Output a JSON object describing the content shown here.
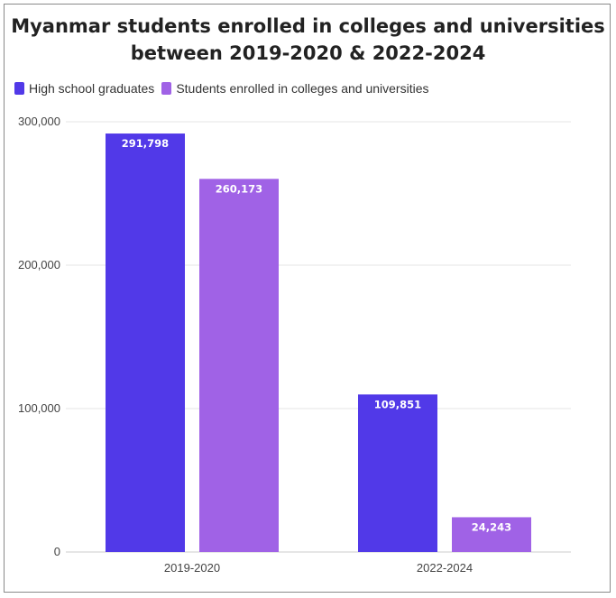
{
  "chart_data": {
    "type": "bar",
    "title_line1": "Myanmar students enrolled in colleges and universities",
    "title_line2": "between 2019-2020 & 2022-2024",
    "categories": [
      "2019-2020",
      "2022-2024"
    ],
    "series": [
      {
        "name": "High school graduates",
        "color": "#5139e8",
        "values": [
          291798,
          109851
        ],
        "labels": [
          "291,798",
          "109,851"
        ]
      },
      {
        "name": "Students enrolled in colleges and universities",
        "color": "#a062e6",
        "values": [
          260173,
          24243
        ],
        "labels": [
          "260,173",
          "24,243"
        ]
      }
    ],
    "yticks": [
      0,
      100000,
      200000,
      300000
    ],
    "ytick_labels": [
      "0",
      "100,000",
      "200,000",
      "300,000"
    ],
    "ylim": [
      0,
      300000
    ],
    "grid": true,
    "legend_position": "top-left"
  }
}
